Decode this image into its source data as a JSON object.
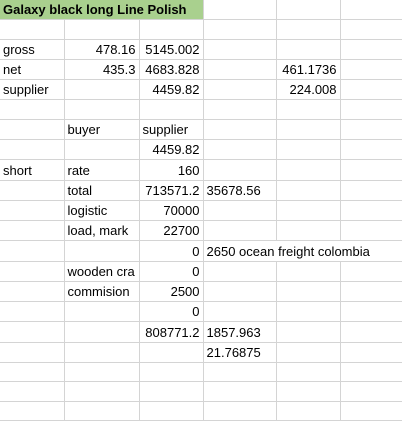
{
  "sheet": {
    "title": "Galaxy black  long Line Polish",
    "rows": {
      "gross": {
        "label": "gross",
        "b": "478.16",
        "c": "5145.002"
      },
      "net": {
        "label": "net",
        "b": "435.3",
        "c": "4683.828",
        "e": "461.1736"
      },
      "supplier": {
        "label": "supplier",
        "c": "4459.82",
        "e": "224.008"
      },
      "headers": {
        "b": "buyer",
        "c": "supplier"
      },
      "supplier_value": {
        "c": "4459.82"
      },
      "rate": {
        "a": "short",
        "b": "rate",
        "c": "160"
      },
      "total": {
        "b": "total",
        "c": "713571.2",
        "d": "35678.56"
      },
      "logistic": {
        "b": "logistic",
        "c": "70000"
      },
      "load_mark": {
        "b": "load, mark",
        "c": "22700"
      },
      "freight": {
        "c": "0",
        "d": "2650 ocean freight colombia"
      },
      "wooden": {
        "b": "wooden cra",
        "c": "0"
      },
      "commision": {
        "b": "commision",
        "c": "2500"
      },
      "zero": {
        "c": "0"
      },
      "sum": {
        "c": "808771.2",
        "d": "1857.963"
      },
      "ratio": {
        "d": "21.76875"
      }
    }
  }
}
